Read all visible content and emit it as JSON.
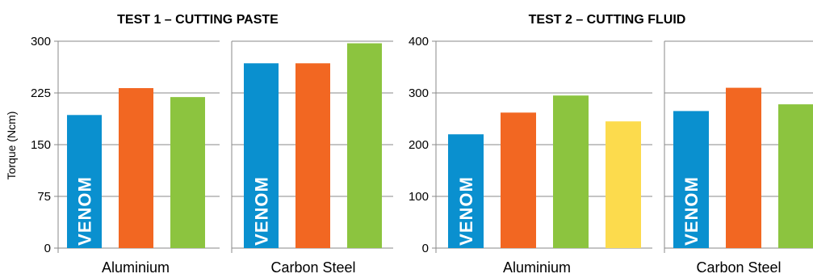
{
  "y_axis_label": "Torque (Ncm)",
  "bar_colors": {
    "blue": "#0a90cf",
    "orange": "#f26722",
    "green": "#8cc43f",
    "yellow": "#fcdb4d"
  },
  "chart_data": [
    {
      "type": "bar",
      "title": "TEST 1 – CUTTING PASTE",
      "ylabel": "Torque (Ncm)",
      "ylim": [
        0,
        300
      ],
      "yticks": [
        "0",
        "75",
        "150",
        "225",
        "300"
      ],
      "grid": true,
      "groups": [
        {
          "label": "Aluminium",
          "bars": [
            {
              "value": 193,
              "color": "#0a90cf",
              "text": "VENOM"
            },
            {
              "value": 232,
              "color": "#f26722",
              "text": ""
            },
            {
              "value": 219,
              "color": "#8cc43f",
              "text": ""
            }
          ]
        },
        {
          "label": "Carbon Steel",
          "bars": [
            {
              "value": 268,
              "color": "#0a90cf",
              "text": "VENOM"
            },
            {
              "value": 268,
              "color": "#f26722",
              "text": ""
            },
            {
              "value": 297,
              "color": "#8cc43f",
              "text": ""
            }
          ]
        }
      ]
    },
    {
      "type": "bar",
      "title": "TEST 2 – CUTTING FLUID",
      "ylabel": "",
      "ylim": [
        0,
        400
      ],
      "yticks": [
        "0",
        "100",
        "200",
        "300",
        "400"
      ],
      "grid": true,
      "groups": [
        {
          "label": "Aluminium",
          "bars": [
            {
              "value": 220,
              "color": "#0a90cf",
              "text": "VENOM"
            },
            {
              "value": 262,
              "color": "#f26722",
              "text": ""
            },
            {
              "value": 295,
              "color": "#8cc43f",
              "text": ""
            },
            {
              "value": 245,
              "color": "#fcdb4d",
              "text": ""
            }
          ]
        },
        {
          "label": "Carbon Steel",
          "bars": [
            {
              "value": 265,
              "color": "#0a90cf",
              "text": "VENOM"
            },
            {
              "value": 310,
              "color": "#f26722",
              "text": ""
            },
            {
              "value": 278,
              "color": "#8cc43f",
              "text": ""
            }
          ]
        }
      ]
    }
  ]
}
